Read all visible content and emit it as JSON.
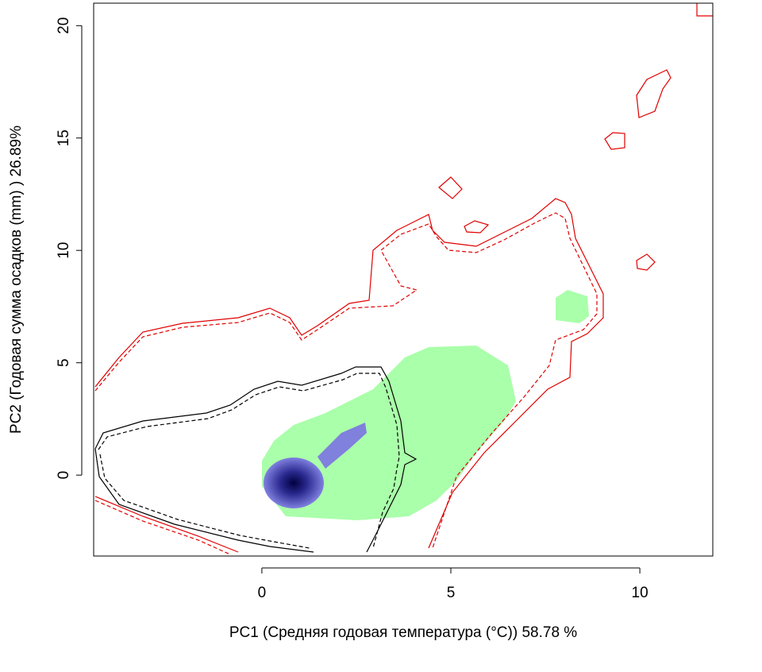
{
  "chart_data": {
    "type": "contour",
    "xlabel": "PC1 (Средняя годовая температура (°C)) 58.78 %",
    "ylabel": "PC2 (Годовая сумма осадков  (mm) ) 26.89%",
    "xlim": [
      -4.45,
      11.93
    ],
    "ylim": [
      -3.6,
      21
    ],
    "xticks": [
      0,
      5,
      10
    ],
    "yticks": [
      0,
      5,
      10,
      15,
      20
    ]
  }
}
